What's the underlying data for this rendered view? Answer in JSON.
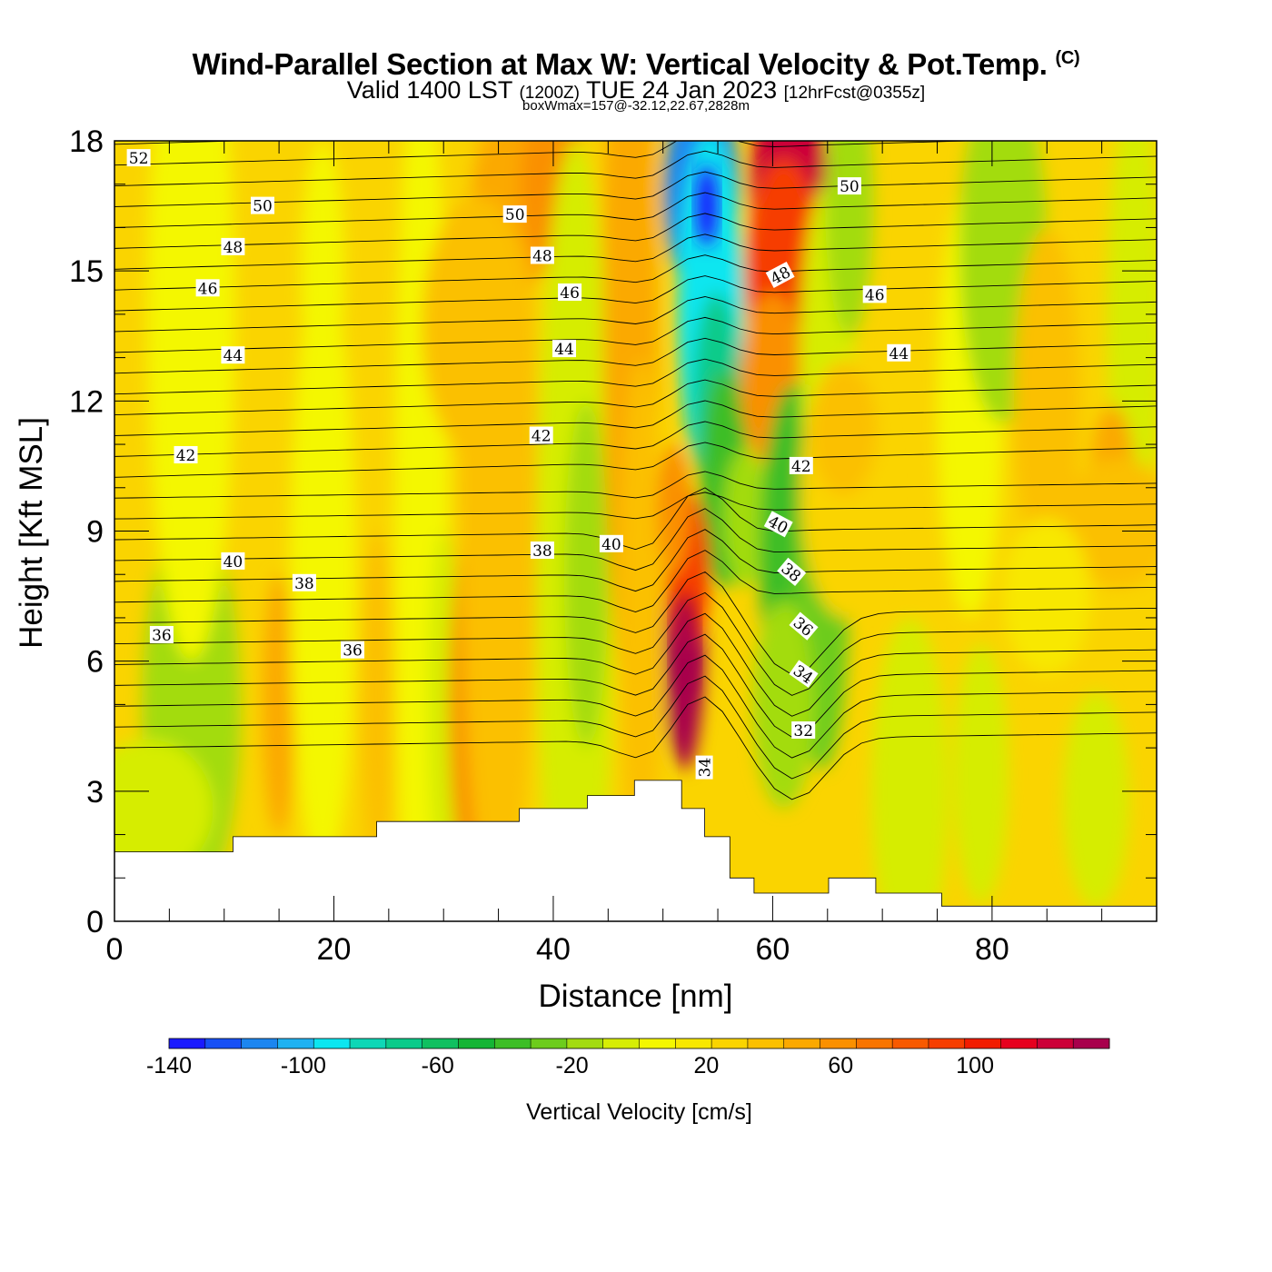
{
  "header": {
    "title": "Wind-Parallel Section at Max W: Vertical Velocity & Pot.Temp.",
    "copyright_mark": "(C)",
    "valid_prefix": "Valid 1400 LST",
    "valid_utc": "(1200Z)",
    "valid_date": "TUE 24 Jan 2023",
    "forecast_info": "[12hrFcst@0355z]",
    "box_info": "boxWmax=157@-32.12,22.67,2828m"
  },
  "chart_data": {
    "type": "heatmap",
    "title": "Wind-Parallel Section at Max W: Vertical Velocity & Pot.Temp.",
    "xlabel": "Distance [nm]",
    "ylabel": "Height [Kft MSL]",
    "xlim": [
      0,
      95
    ],
    "ylim": [
      0,
      18
    ],
    "x_ticks": [
      "0",
      "20",
      "40",
      "60",
      "80"
    ],
    "x_tick_values": [
      0,
      20,
      40,
      60,
      80
    ],
    "y_ticks": [
      "0",
      "3",
      "6",
      "9",
      "12",
      "15",
      "18"
    ],
    "y_tick_values": [
      0,
      3,
      6,
      9,
      12,
      15,
      18
    ],
    "colorbar": {
      "label": "Vertical Velocity [cm/s]",
      "min": -140,
      "max": 130,
      "step": 10,
      "tick_labels": [
        "-140",
        "-100",
        "-60",
        "-20",
        "20",
        "60",
        "100"
      ],
      "tick_values": [
        -140,
        -100,
        -60,
        -20,
        20,
        60,
        100
      ],
      "colors": [
        "#1a1aff",
        "#1750f5",
        "#1c86f0",
        "#1fb2f2",
        "#0ce6f0",
        "#0ed7b6",
        "#0bcb8a",
        "#10c060",
        "#15b535",
        "#3dbe26",
        "#6dcc1c",
        "#a3dc10",
        "#d6ed05",
        "#f4f700",
        "#f8e800",
        "#fad400",
        "#fbc000",
        "#fba900",
        "#fa9000",
        "#f97500",
        "#f85a00",
        "#f63e00",
        "#f21c00",
        "#e6001e",
        "#cc0038",
        "#a8004c"
      ]
    },
    "terrain_kft": {
      "x": [
        0,
        10.8,
        10.8,
        23.9,
        23.9,
        36.9,
        36.9,
        43.1,
        43.1,
        47.4,
        47.4,
        51.7,
        51.7,
        53.8,
        53.8,
        56.1,
        56.1,
        58.3,
        58.3,
        65.1,
        65.1,
        69.4,
        69.4,
        75.4,
        75.4,
        95
      ],
      "y": [
        1.6,
        1.6,
        1.95,
        1.95,
        2.3,
        2.3,
        2.6,
        2.6,
        2.9,
        2.9,
        3.25,
        3.25,
        2.6,
        2.6,
        1.95,
        1.95,
        1.0,
        1.0,
        0.65,
        0.65,
        1.0,
        1.0,
        0.65,
        0.65,
        0.35,
        0.35
      ]
    },
    "updraft_core": {
      "x": 52,
      "y": 6.3,
      "value": 130
    },
    "downdraft_core": {
      "x": 54,
      "y": 16.5,
      "value": -140
    },
    "theta_contour_labels": [
      {
        "text": "52",
        "x": 2.2,
        "y": 17.6,
        "rot": 0
      },
      {
        "text": "50",
        "x": 13.5,
        "y": 16.5,
        "rot": 0
      },
      {
        "text": "50",
        "x": 36.5,
        "y": 16.3,
        "rot": 0
      },
      {
        "text": "50",
        "x": 67.0,
        "y": 16.95,
        "rot": 0
      },
      {
        "text": "48",
        "x": 10.8,
        "y": 15.55,
        "rot": 0
      },
      {
        "text": "48",
        "x": 39.0,
        "y": 15.35,
        "rot": 0
      },
      {
        "text": "48",
        "x": 60.7,
        "y": 14.9,
        "rot": -28
      },
      {
        "text": "46",
        "x": 8.5,
        "y": 14.6,
        "rot": 0
      },
      {
        "text": "46",
        "x": 41.5,
        "y": 14.5,
        "rot": 0
      },
      {
        "text": "46",
        "x": 69.3,
        "y": 14.45,
        "rot": 0
      },
      {
        "text": "44",
        "x": 10.8,
        "y": 13.05,
        "rot": 0
      },
      {
        "text": "44",
        "x": 41.0,
        "y": 13.2,
        "rot": 0
      },
      {
        "text": "44",
        "x": 71.5,
        "y": 13.1,
        "rot": 0
      },
      {
        "text": "42",
        "x": 6.5,
        "y": 10.75,
        "rot": 0
      },
      {
        "text": "42",
        "x": 38.9,
        "y": 11.2,
        "rot": 0
      },
      {
        "text": "42",
        "x": 62.6,
        "y": 10.5,
        "rot": 0
      },
      {
        "text": "40",
        "x": 10.8,
        "y": 8.3,
        "rot": 0
      },
      {
        "text": "40",
        "x": 45.3,
        "y": 8.7,
        "rot": 0
      },
      {
        "text": "40",
        "x": 60.5,
        "y": 9.15,
        "rot": 28
      },
      {
        "text": "38",
        "x": 17.3,
        "y": 7.8,
        "rot": 0
      },
      {
        "text": "38",
        "x": 39.0,
        "y": 8.55,
        "rot": 0
      },
      {
        "text": "38",
        "x": 61.7,
        "y": 8.05,
        "rot": 40
      },
      {
        "text": "36",
        "x": 4.3,
        "y": 6.6,
        "rot": 0
      },
      {
        "text": "36",
        "x": 21.7,
        "y": 6.25,
        "rot": 0
      },
      {
        "text": "36",
        "x": 62.8,
        "y": 6.8,
        "rot": 40
      },
      {
        "text": "34",
        "x": 53.8,
        "y": 3.55,
        "rot": -90
      },
      {
        "text": "34",
        "x": 62.8,
        "y": 5.7,
        "rot": 35
      },
      {
        "text": "32",
        "x": 62.8,
        "y": 4.4,
        "rot": 0
      }
    ]
  }
}
